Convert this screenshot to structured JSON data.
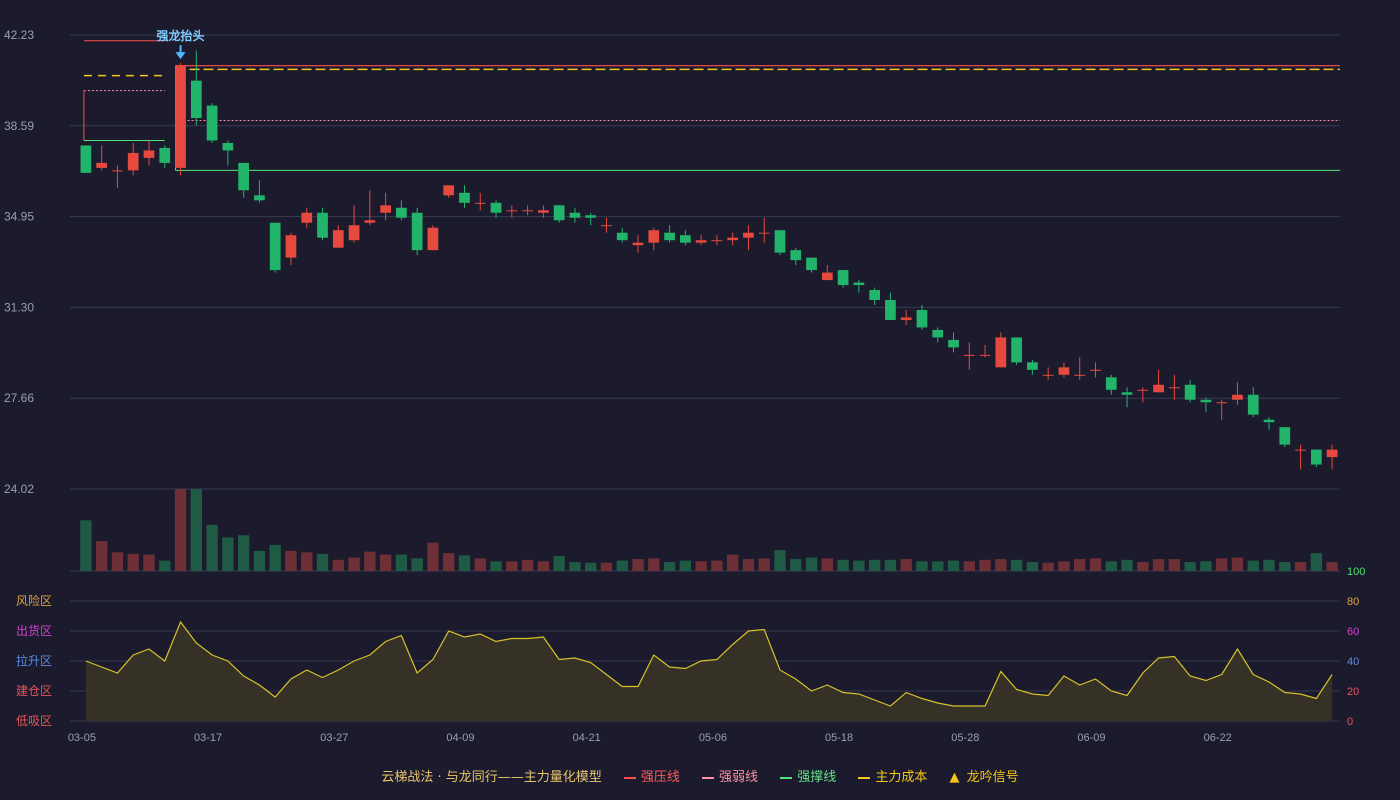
{
  "colors": {
    "up": "#e64a3e",
    "down": "#22b46a",
    "vol_up": "#6e3036",
    "vol_down": "#1e5a44",
    "pressure": "#ff4d4d",
    "weak": "#ff8fa3",
    "support": "#55e07a",
    "cost": "#f5c518",
    "signal": "#4fb8ff",
    "fund": "#d7c12a",
    "grid": "#3a3a50",
    "text": "#9aa0aa"
  },
  "chart_data": {
    "type": "candlestick",
    "price_axis": {
      "ylim": [
        24.02,
        42.23
      ],
      "ticks": [
        "42.23",
        "38.59",
        "34.95",
        "31.30",
        "27.66",
        "24.02"
      ]
    },
    "x_tick_labels": [
      {
        "i": 0,
        "label": "03-05"
      },
      {
        "i": 8,
        "label": "03-17"
      },
      {
        "i": 16,
        "label": "03-27"
      },
      {
        "i": 24,
        "label": "04-09"
      },
      {
        "i": 32,
        "label": "04-21"
      },
      {
        "i": 40,
        "label": "05-06"
      },
      {
        "i": 48,
        "label": "05-18"
      },
      {
        "i": 56,
        "label": "05-28"
      },
      {
        "i": 64,
        "label": "06-09"
      },
      {
        "i": 72,
        "label": "06-22"
      }
    ],
    "candles": [
      [
        37.8,
        36.7,
        37.8,
        36.7
      ],
      [
        36.9,
        37.1,
        37.8,
        36.8
      ],
      [
        36.8,
        36.8,
        37.0,
        36.1
      ],
      [
        36.8,
        37.5,
        37.9,
        36.6
      ],
      [
        37.3,
        37.6,
        38.0,
        37.0
      ],
      [
        37.7,
        37.1,
        37.8,
        36.9
      ],
      [
        36.9,
        41.0,
        41.1,
        36.6
      ],
      [
        40.4,
        38.9,
        41.6,
        38.6
      ],
      [
        39.4,
        38.0,
        39.5,
        37.9
      ],
      [
        37.9,
        37.6,
        38.0,
        37.0
      ],
      [
        37.1,
        36.0,
        37.1,
        35.7
      ],
      [
        35.8,
        35.6,
        36.4,
        35.5
      ],
      [
        34.7,
        32.8,
        34.7,
        32.7
      ],
      [
        33.3,
        34.2,
        34.3,
        33.0
      ],
      [
        34.7,
        35.1,
        35.3,
        34.5
      ],
      [
        35.1,
        34.1,
        35.3,
        34.0
      ],
      [
        33.7,
        34.4,
        34.6,
        33.7
      ],
      [
        34.0,
        34.6,
        35.4,
        33.9
      ],
      [
        34.7,
        34.8,
        36.0,
        34.6
      ],
      [
        35.1,
        35.4,
        35.9,
        34.8
      ],
      [
        35.3,
        34.9,
        35.6,
        34.8
      ],
      [
        35.1,
        33.6,
        35.3,
        33.4
      ],
      [
        33.6,
        34.5,
        34.6,
        33.6
      ],
      [
        35.8,
        36.2,
        36.2,
        35.7
      ],
      [
        35.9,
        35.5,
        36.2,
        35.3
      ],
      [
        35.5,
        35.5,
        35.9,
        35.2
      ],
      [
        35.5,
        35.1,
        35.6,
        34.9
      ],
      [
        35.2,
        35.2,
        35.4,
        34.9
      ],
      [
        35.2,
        35.2,
        35.4,
        35.0
      ],
      [
        35.1,
        35.2,
        35.4,
        34.9
      ],
      [
        35.4,
        34.8,
        35.4,
        34.7
      ],
      [
        35.1,
        34.9,
        35.3,
        34.7
      ],
      [
        35.0,
        34.9,
        35.1,
        34.6
      ],
      [
        34.6,
        34.6,
        34.9,
        34.3
      ],
      [
        34.3,
        34.0,
        34.5,
        33.9
      ],
      [
        33.8,
        33.9,
        34.2,
        33.5
      ],
      [
        33.9,
        34.4,
        34.5,
        33.6
      ],
      [
        34.3,
        34.0,
        34.6,
        33.9
      ],
      [
        34.2,
        33.9,
        34.4,
        33.8
      ],
      [
        33.9,
        34.0,
        34.2,
        33.8
      ],
      [
        34.0,
        34.0,
        34.2,
        33.8
      ],
      [
        34.0,
        34.1,
        34.3,
        33.8
      ],
      [
        34.1,
        34.3,
        34.6,
        33.6
      ],
      [
        34.3,
        34.3,
        34.9,
        33.9
      ],
      [
        34.4,
        33.5,
        34.4,
        33.4
      ],
      [
        33.6,
        33.2,
        33.7,
        33.0
      ],
      [
        33.3,
        32.8,
        33.3,
        32.7
      ],
      [
        32.4,
        32.7,
        33.0,
        32.4
      ],
      [
        32.8,
        32.2,
        32.8,
        32.1
      ],
      [
        32.3,
        32.2,
        32.4,
        31.9
      ],
      [
        32.0,
        31.6,
        32.1,
        31.4
      ],
      [
        31.6,
        30.8,
        31.9,
        30.8
      ],
      [
        30.8,
        30.9,
        31.2,
        30.6
      ],
      [
        31.2,
        30.5,
        31.4,
        30.4
      ],
      [
        30.4,
        30.1,
        30.5,
        29.9
      ],
      [
        30.0,
        29.7,
        30.3,
        29.5
      ],
      [
        29.4,
        29.4,
        29.9,
        28.8
      ],
      [
        29.4,
        29.4,
        29.8,
        29.3
      ],
      [
        28.9,
        30.1,
        30.3,
        28.9
      ],
      [
        30.1,
        29.1,
        30.1,
        29.0
      ],
      [
        29.1,
        28.8,
        29.2,
        28.6
      ],
      [
        28.6,
        28.6,
        28.9,
        28.4
      ],
      [
        28.6,
        28.9,
        29.1,
        28.5
      ],
      [
        28.6,
        28.6,
        29.3,
        28.4
      ],
      [
        28.8,
        28.8,
        29.1,
        28.5
      ],
      [
        28.5,
        28.0,
        28.6,
        27.8
      ],
      [
        27.9,
        27.8,
        28.1,
        27.3
      ],
      [
        28.0,
        28.0,
        28.1,
        27.5
      ],
      [
        27.9,
        28.2,
        28.8,
        27.9
      ],
      [
        28.1,
        28.1,
        28.6,
        27.6
      ],
      [
        28.2,
        27.6,
        28.4,
        27.5
      ],
      [
        27.6,
        27.5,
        27.7,
        27.1
      ],
      [
        27.5,
        27.5,
        27.6,
        26.8
      ],
      [
        27.6,
        27.8,
        28.3,
        27.4
      ],
      [
        27.8,
        27.0,
        28.1,
        26.9
      ],
      [
        26.8,
        26.7,
        26.9,
        26.4
      ],
      [
        26.5,
        25.8,
        26.5,
        25.7
      ],
      [
        25.6,
        25.6,
        25.8,
        24.8
      ],
      [
        25.6,
        25.0,
        25.6,
        24.9
      ],
      [
        25.3,
        25.6,
        25.8,
        24.8
      ]
    ],
    "volume": [
      68,
      40,
      25,
      23,
      22,
      14,
      110,
      110,
      62,
      45,
      48,
      27,
      35,
      27,
      25,
      23,
      15,
      18,
      26,
      22,
      22,
      17,
      38,
      24,
      21,
      17,
      13,
      13,
      15,
      13,
      20,
      12,
      11,
      11,
      14,
      16,
      17,
      12,
      14,
      13,
      14,
      22,
      16,
      17,
      28,
      16,
      18,
      17,
      15,
      14,
      15,
      15,
      16,
      13,
      13,
      14,
      13,
      15,
      16,
      15,
      12,
      11,
      13,
      16,
      17,
      13,
      15,
      12,
      16,
      16,
      12,
      13,
      17,
      18,
      14,
      15,
      12,
      12,
      24,
      12
    ],
    "fund_indicator": {
      "label": "主力量化模型",
      "y_ticks": [
        "100",
        "80",
        "60",
        "40",
        "20",
        "0"
      ],
      "zones": [
        "风险区",
        "出货区",
        "拉升区",
        "建仓区",
        "低吸区"
      ],
      "zone_colors": [
        "#e2a23b",
        "#d63fd0",
        "#5b8ce0",
        "#e8555a",
        "#e8555a"
      ],
      "tick_colors": [
        "#4ee06a",
        "#e2a23b",
        "#d63fd0",
        "#5b8ce0",
        "#e8555a",
        "#e8555a"
      ],
      "values": [
        40,
        36,
        32,
        44,
        48,
        40,
        66,
        52,
        44,
        40,
        30,
        24,
        16,
        28,
        34,
        29,
        34,
        40,
        44,
        53,
        57,
        32,
        41,
        60,
        56,
        58,
        53,
        55,
        55,
        56,
        41,
        42,
        39,
        31,
        23,
        23,
        44,
        36,
        35,
        40,
        41,
        51,
        60,
        61,
        34,
        28,
        20,
        24,
        19,
        18,
        14,
        10,
        19,
        15,
        12,
        10,
        10,
        10,
        33,
        21,
        18,
        17,
        30,
        24,
        28,
        20,
        17,
        32,
        42,
        43,
        30,
        27,
        31,
        48,
        31,
        26,
        19,
        18,
        15,
        31
      ]
    },
    "lines": {
      "pressure_short": 42.0,
      "pressure_long": 41.0,
      "cost_short": 40.6,
      "cost_long": 40.85,
      "weak_box_top": 40.0,
      "weak_long": 38.8,
      "support_box": 38.0,
      "support_long": 36.8
    },
    "signal": {
      "index": 6,
      "label": "强龙抬头"
    }
  },
  "legend": {
    "title": "云梯战法 · 与龙同行——主力量化模型",
    "items": [
      {
        "label": "强压线"
      },
      {
        "label": "强弱线"
      },
      {
        "label": "强撑线"
      },
      {
        "label": "主力成本"
      },
      {
        "label": "龙吟信号",
        "glyph": "▲"
      }
    ]
  }
}
